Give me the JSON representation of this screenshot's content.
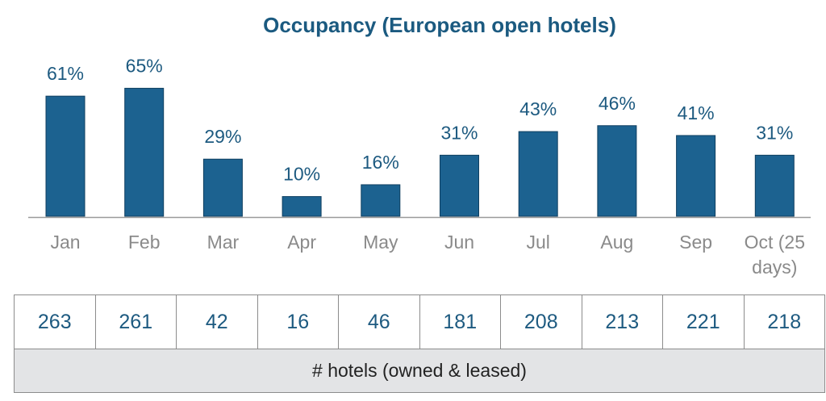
{
  "chart_data": {
    "type": "bar",
    "title": "Occupancy (European open hotels)",
    "categories": [
      "Jan",
      "Feb",
      "Mar",
      "Apr",
      "May",
      "Jun",
      "Jul",
      "Aug",
      "Sep",
      "Oct (25 days)"
    ],
    "values": [
      61,
      65,
      29,
      10,
      16,
      31,
      43,
      46,
      41,
      31
    ],
    "value_labels": [
      "61%",
      "65%",
      "29%",
      "10%",
      "16%",
      "31%",
      "43%",
      "46%",
      "41%",
      "31%"
    ],
    "color": "#1c6290"
  },
  "table": {
    "values": [
      "263",
      "261",
      "42",
      "16",
      "46",
      "181",
      "208",
      "213",
      "221",
      "218"
    ],
    "label": "# hotels (owned & leased)"
  }
}
